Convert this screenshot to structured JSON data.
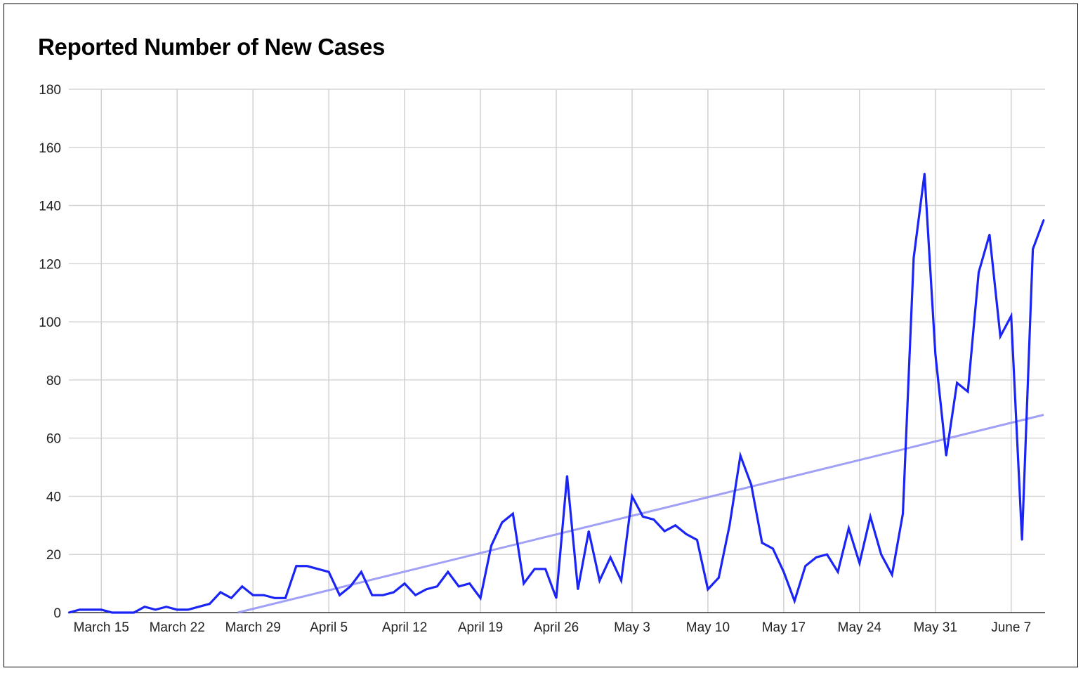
{
  "chart_data": {
    "type": "line",
    "title": "Reported Number of New Cases",
    "xlabel": "",
    "ylabel": "",
    "ylim": [
      0,
      180
    ],
    "yticks": [
      0,
      20,
      40,
      60,
      80,
      100,
      120,
      140,
      160,
      180
    ],
    "x_start": "March 12",
    "x_end": "June 10",
    "xtick_labels": [
      "March 15",
      "March 22",
      "March 29",
      "April 5",
      "April 12",
      "April 19",
      "April 26",
      "May 3",
      "May 10",
      "May 17",
      "May 24",
      "May 31",
      "June 7"
    ],
    "xtick_day_index": [
      3,
      10,
      17,
      24,
      31,
      38,
      45,
      52,
      59,
      66,
      73,
      80,
      87
    ],
    "grid": true,
    "legend": "none",
    "series": [
      {
        "name": "New cases",
        "color": "#1a24f5",
        "values": [
          0,
          1,
          1,
          1,
          0,
          0,
          0,
          2,
          1,
          2,
          1,
          1,
          2,
          3,
          7,
          5,
          9,
          6,
          6,
          5,
          5,
          16,
          16,
          15,
          14,
          6,
          9,
          14,
          6,
          6,
          7,
          10,
          6,
          8,
          9,
          14,
          9,
          10,
          5,
          23,
          31,
          34,
          10,
          15,
          15,
          5,
          47,
          8,
          28,
          11,
          19,
          11,
          40,
          33,
          32,
          28,
          30,
          27,
          25,
          8,
          12,
          30,
          54,
          44,
          24,
          22,
          14,
          4,
          16,
          19,
          20,
          14,
          29,
          17,
          33,
          20,
          13,
          34,
          122,
          151,
          89,
          54,
          79,
          76,
          117,
          130,
          95,
          102,
          25,
          125,
          135
        ]
      },
      {
        "name": "Trendline",
        "color": "#8f8ff5",
        "type": "linear",
        "slope_per_day": 0.914,
        "intercept": -14.25
      }
    ]
  }
}
